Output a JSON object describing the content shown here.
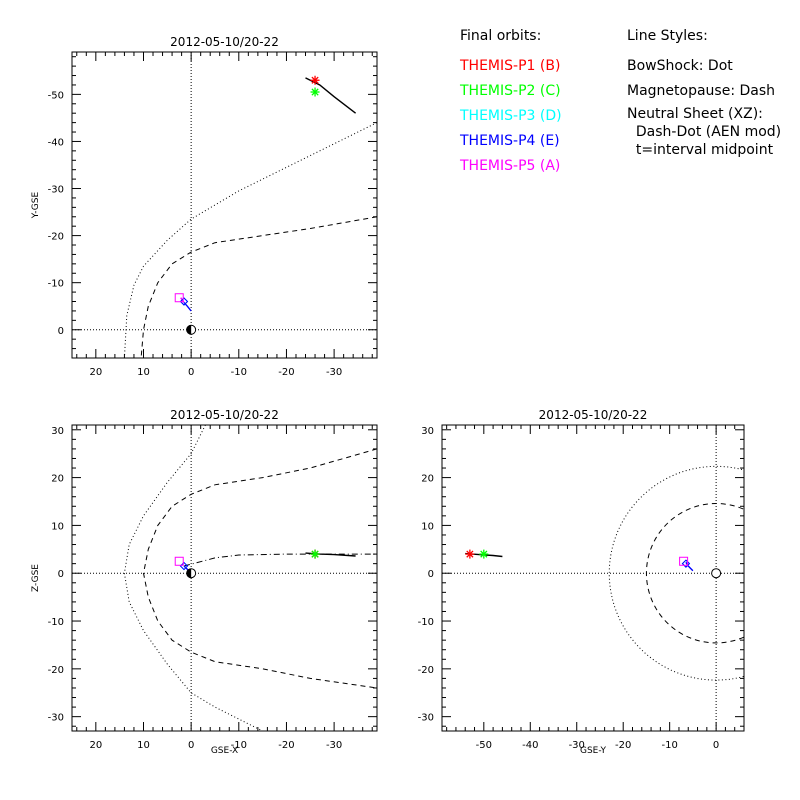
{
  "legend": {
    "orbits_title": "Final orbits:",
    "probes": [
      {
        "label": "THEMIS-P1 (B)",
        "color": "#ff0000"
      },
      {
        "label": "THEMIS-P2 (C)",
        "color": "#00ff00"
      },
      {
        "label": "THEMIS-P3 (D)",
        "color": "#00ffff"
      },
      {
        "label": "THEMIS-P4 (E)",
        "color": "#0000ff"
      },
      {
        "label": "THEMIS-P5 (A)",
        "color": "#ff00ff"
      }
    ],
    "styles_title": "Line Styles:",
    "styles": [
      "BowShock: Dot",
      "Magnetopause: Dash",
      "Neutral Sheet (XZ):",
      "  Dash-Dot (AEN mod)",
      "  t=interval midpoint"
    ]
  },
  "chart_data": [
    {
      "type": "line",
      "panel": "XY",
      "title": "2012-05-10/20-22",
      "xlabel": "",
      "ylabel": "Y-GSE",
      "xlim": [
        25,
        -39
      ],
      "ylim": [
        6,
        -59
      ],
      "xticks": [
        20,
        10,
        0,
        -10,
        -20,
        -30
      ],
      "yticks": [
        0,
        -10,
        -20,
        -30,
        -40,
        -50
      ],
      "series": [
        {
          "role": "bow shock",
          "style": "dot",
          "x": [
            -39,
            -20,
            -10,
            0,
            5,
            10,
            12,
            13.5,
            14
          ],
          "y": [
            -44,
            -34.5,
            -29.5,
            -23.5,
            -19,
            -13.5,
            -9.5,
            -3,
            6
          ]
        },
        {
          "role": "magnetopause",
          "style": "dash",
          "x": [
            -39,
            -25,
            -15,
            -5,
            0,
            4,
            7,
            9,
            10,
            10.5
          ],
          "y": [
            -24,
            -21.5,
            -20,
            -18.5,
            -16.5,
            -14,
            -10,
            -5,
            0,
            6
          ]
        },
        {
          "role": "P1 orbit",
          "color": "#000000",
          "x": [
            -24,
            -27,
            -30,
            -34.5
          ],
          "y": [
            -53.5,
            -52,
            -49.5,
            -46
          ]
        },
        {
          "role": "P4 orbit",
          "color": "#0000ff",
          "x": [
            0,
            0.8,
            1.5
          ],
          "y": [
            -4,
            -5,
            -5.8
          ]
        },
        {
          "role": "P5 orbit",
          "color": "#ff00ff",
          "x": [
            1.5,
            2.2
          ],
          "y": [
            -5.8,
            -6.8
          ]
        }
      ],
      "markers": [
        {
          "probe": "P1",
          "color": "#ff0000",
          "x": -26,
          "y": -53
        },
        {
          "probe": "P2",
          "color": "#00ff00",
          "x": -26,
          "y": -50.5
        },
        {
          "probe": "P3",
          "color": "#00ffff",
          "x": 1.5,
          "y": -6
        },
        {
          "probe": "P4",
          "color": "#0000ff",
          "x": 1.5,
          "y": -6
        },
        {
          "probe": "P5",
          "color": "#ff00ff",
          "x": 2.5,
          "y": -6.8
        }
      ]
    },
    {
      "type": "line",
      "panel": "XZ",
      "title": "2012-05-10/20-22",
      "xlabel": "GSE-X",
      "ylabel": "Z-GSE",
      "xlim": [
        25,
        -39
      ],
      "ylim": [
        -33,
        31
      ],
      "xticks": [
        20,
        10,
        0,
        -10,
        -20,
        -30
      ],
      "yticks": [
        -30,
        -20,
        -10,
        0,
        10,
        20,
        30
      ],
      "series": [
        {
          "role": "bow shock",
          "style": "dot",
          "x": [
            -3,
            0,
            5,
            10,
            13,
            14,
            13,
            10,
            5,
            0,
            -5,
            -15
          ],
          "y": [
            31,
            25,
            19,
            12,
            6,
            0,
            -6,
            -12,
            -19,
            -25,
            -28,
            -33
          ]
        },
        {
          "role": "magnetopause",
          "style": "dash",
          "x": [
            -39,
            -25,
            -15,
            -5,
            0,
            4,
            7,
            9,
            10,
            9,
            7,
            4,
            0,
            -5,
            -15,
            -25,
            -39
          ],
          "y": [
            26,
            22,
            20,
            18.5,
            16.5,
            14,
            10,
            5,
            0,
            -5,
            -10,
            -14,
            -16.5,
            -18.5,
            -20,
            -22,
            -24
          ]
        },
        {
          "role": "neutral sheet",
          "style": "dash-dot",
          "x": [
            1.5,
            -5,
            -10,
            -20,
            -30,
            -39
          ],
          "y": [
            1.5,
            3.2,
            3.8,
            4,
            4,
            4
          ]
        },
        {
          "role": "P1 orbit",
          "color": "#000000",
          "x": [
            -24,
            -27,
            -30,
            -34.5
          ],
          "y": [
            4.2,
            4.0,
            3.9,
            3.6
          ]
        },
        {
          "role": "P4 orbit",
          "color": "#0000ff",
          "x": [
            0.5,
            1.5
          ],
          "y": [
            0.5,
            1.5
          ]
        }
      ],
      "markers": [
        {
          "probe": "P1",
          "color": "#ff0000",
          "x": -26,
          "y": 4
        },
        {
          "probe": "P2",
          "color": "#00ff00",
          "x": -26,
          "y": 4
        },
        {
          "probe": "P3",
          "color": "#00ffff",
          "x": 1.5,
          "y": 1.5
        },
        {
          "probe": "P4",
          "color": "#0000ff",
          "x": 1.5,
          "y": 1.5
        },
        {
          "probe": "P5",
          "color": "#ff00ff",
          "x": 2.5,
          "y": 2.5
        }
      ]
    },
    {
      "type": "line",
      "panel": "YZ",
      "title": "2012-05-10/20-22",
      "xlabel": "GSE-Y",
      "ylabel": "",
      "xlim": [
        -59,
        6
      ],
      "ylim": [
        -33,
        31
      ],
      "xticks": [
        -50,
        -40,
        -30,
        -20,
        -10,
        0
      ],
      "yticks": [
        -30,
        -20,
        -10,
        0,
        10,
        20,
        30
      ],
      "series": [
        {
          "role": "bow shock",
          "style": "dot",
          "circle_radius": 23
        },
        {
          "role": "magnetopause",
          "style": "dash",
          "circle_radius": 15
        },
        {
          "role": "P1/P2 orbit",
          "color": "#000000",
          "x": [
            -54,
            -51,
            -48,
            -46
          ],
          "y": [
            4.1,
            3.9,
            3.7,
            3.5
          ]
        },
        {
          "role": "P4 orbit",
          "color": "#0000ff",
          "x": [
            -6.5,
            -6,
            -5
          ],
          "y": [
            2.3,
            1.5,
            0.5
          ]
        }
      ],
      "markers": [
        {
          "probe": "P1",
          "color": "#ff0000",
          "x": -53,
          "y": 4
        },
        {
          "probe": "P2",
          "color": "#00ff00",
          "x": -50,
          "y": 4
        },
        {
          "probe": "P3",
          "color": "#00ffff",
          "x": -6.5,
          "y": 2
        },
        {
          "probe": "P4",
          "color": "#0000ff",
          "x": -6.5,
          "y": 2
        },
        {
          "probe": "P5",
          "color": "#ff00ff",
          "x": -7,
          "y": 2.5
        }
      ]
    }
  ]
}
